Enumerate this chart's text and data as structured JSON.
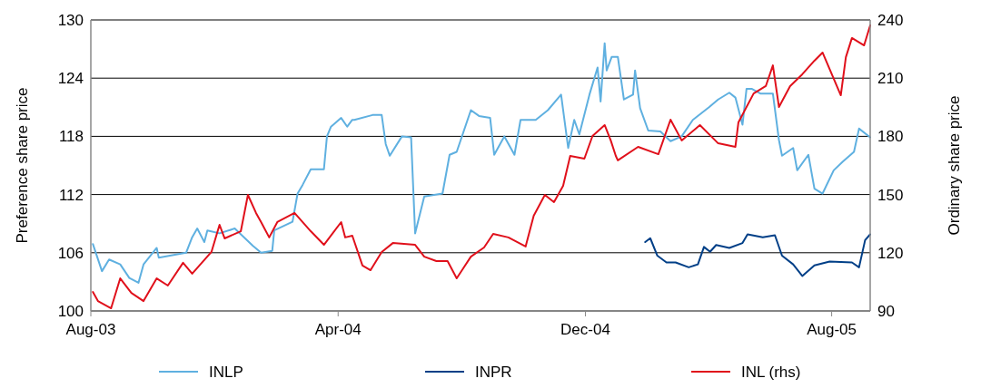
{
  "chart_data": {
    "type": "line",
    "ylabel": "Preference share price",
    "y2label": "Ordinary share price",
    "xlim": [
      "2003-08-01",
      "2005-09-08"
    ],
    "xticks": [
      {
        "value": "2003-08-01",
        "label": "Aug-03"
      },
      {
        "value": "2004-04-01",
        "label": "Apr-04"
      },
      {
        "value": "2004-12-01",
        "label": "Dec-04"
      },
      {
        "value": "2005-08-01",
        "label": "Aug-05"
      }
    ],
    "ylim": [
      100,
      130
    ],
    "yticks": [
      100,
      106,
      112,
      118,
      124,
      130
    ],
    "y2lim": [
      90,
      240
    ],
    "y2ticks": [
      90,
      120,
      150,
      180,
      210,
      240
    ],
    "grid": "y",
    "legend": "bottom",
    "line_style": "solid",
    "marker": "none",
    "series": [
      {
        "name": "INLP",
        "color": "#5fb0e0",
        "x": [
          "2003-08-03",
          "2003-08-12",
          "2003-08-19",
          "2003-08-30",
          "2003-09-08",
          "2003-09-17",
          "2003-09-22",
          "2003-10-05",
          "2003-10-07",
          "2003-11-03",
          "2003-11-09",
          "2003-11-14",
          "2003-11-21",
          "2003-11-24",
          "2003-12-06",
          "2003-12-21",
          "2004-01-08",
          "2004-01-16",
          "2004-01-27",
          "2004-01-29",
          "2004-02-16",
          "2004-02-21",
          "2004-02-26",
          "2004-03-05",
          "2004-03-18",
          "2004-03-21",
          "2004-03-25",
          "2004-04-04",
          "2004-04-10",
          "2004-04-15",
          "2004-04-17",
          "2004-05-05",
          "2004-05-14",
          "2004-05-18",
          "2004-05-22",
          "2004-06-03",
          "2004-06-12",
          "2004-06-16",
          "2004-06-25",
          "2004-07-13",
          "2004-07-20",
          "2004-07-27",
          "2004-08-10",
          "2004-08-18",
          "2004-08-29",
          "2004-09-02",
          "2004-09-12",
          "2004-09-22",
          "2004-09-28",
          "2004-10-13",
          "2004-10-25",
          "2004-11-07",
          "2004-11-14",
          "2004-11-20",
          "2004-11-25",
          "2004-12-05",
          "2004-12-13",
          "2004-12-16",
          "2004-12-20",
          "2004-12-22",
          "2004-12-27",
          "2005-01-02",
          "2005-01-08",
          "2005-01-17",
          "2005-01-19",
          "2005-01-24",
          "2005-02-01",
          "2005-02-13",
          "2005-02-23",
          "2005-03-06",
          "2005-03-17",
          "2005-04-02",
          "2005-04-11",
          "2005-04-22",
          "2005-04-28",
          "2005-05-05",
          "2005-05-09",
          "2005-05-14",
          "2005-05-23",
          "2005-06-04",
          "2005-06-10",
          "2005-06-13",
          "2005-06-24",
          "2005-06-28",
          "2005-07-09",
          "2005-07-15",
          "2005-07-23",
          "2005-08-03",
          "2005-08-12",
          "2005-08-23",
          "2005-08-28",
          "2005-09-08"
        ],
        "values": [
          106.9,
          104.1,
          105.3,
          104.8,
          103.4,
          102.9,
          104.8,
          106.5,
          105.5,
          106,
          107.6,
          108.5,
          107.1,
          108.3,
          108,
          108.5,
          106.7,
          106,
          106.2,
          108.3,
          109.2,
          112.1,
          113,
          114.6,
          114.6,
          118,
          119,
          119.9,
          119,
          119.7,
          119.7,
          120.2,
          120.2,
          117.2,
          116,
          118,
          117.9,
          108,
          111.8,
          112.1,
          116.1,
          116.4,
          120.7,
          120.1,
          119.9,
          116.1,
          118,
          116.1,
          119.7,
          119.7,
          120.7,
          122.3,
          116.8,
          119.7,
          118.2,
          122.3,
          125.1,
          121.6,
          127.6,
          124.8,
          126.2,
          126.2,
          121.8,
          122.3,
          124.8,
          120.9,
          118.6,
          118.5,
          117.5,
          118,
          119.7,
          121,
          121.8,
          122.5,
          122,
          119.2,
          122.9,
          122.9,
          122.4,
          122.4,
          117.6,
          116,
          116.8,
          114.5,
          116.1,
          112.6,
          112.1,
          114.5,
          115.4,
          116.4,
          118.8,
          117.9
        ]
      },
      {
        "name": "INPR",
        "color": "#003f87",
        "x": [
          "2005-01-29",
          "2005-02-03",
          "2005-02-10",
          "2005-02-19",
          "2005-02-28",
          "2005-03-13",
          "2005-03-22",
          "2005-03-28",
          "2005-04-03",
          "2005-04-09",
          "2005-04-22",
          "2005-05-05",
          "2005-05-10",
          "2005-05-25",
          "2005-06-06",
          "2005-06-13",
          "2005-06-24",
          "2005-07-03",
          "2005-07-15",
          "2005-07-30",
          "2005-08-21",
          "2005-08-28",
          "2005-09-03",
          "2005-09-08"
        ],
        "values": [
          107.1,
          107.5,
          105.7,
          105,
          105,
          104.5,
          104.8,
          106.6,
          106.1,
          106.8,
          106.5,
          107,
          107.9,
          107.6,
          107.8,
          105.7,
          104.8,
          103.6,
          104.7,
          105.1,
          105,
          104.5,
          107.3,
          107.9
        ]
      },
      {
        "name": "INL (rhs)",
        "color": "#e0101b",
        "axis": "y2",
        "x": [
          "2003-08-03",
          "2003-08-08",
          "2003-08-21",
          "2003-08-30",
          "2003-09-10",
          "2003-09-22",
          "2003-10-05",
          "2003-10-16",
          "2003-10-31",
          "2003-11-09",
          "2003-11-28",
          "2003-12-06",
          "2003-12-11",
          "2003-12-27",
          "2004-01-03",
          "2004-01-11",
          "2004-01-16",
          "2004-01-24",
          "2004-02-01",
          "2004-02-18",
          "2004-03-05",
          "2004-03-18",
          "2004-04-04",
          "2004-04-08",
          "2004-04-15",
          "2004-04-25",
          "2004-05-03",
          "2004-05-14",
          "2004-05-25",
          "2004-06-16",
          "2004-06-25",
          "2004-07-07",
          "2004-07-18",
          "2004-07-27",
          "2004-08-10",
          "2004-08-23",
          "2004-09-01",
          "2004-09-16",
          "2004-10-03",
          "2004-10-11",
          "2004-10-22",
          "2004-10-31",
          "2004-11-09",
          "2004-11-16",
          "2004-11-30",
          "2004-12-08",
          "2004-12-20",
          "2004-12-26",
          "2004-12-31",
          "2005-01-02",
          "2005-01-22",
          "2005-02-11",
          "2005-02-23",
          "2005-03-06",
          "2005-03-24",
          "2005-04-11",
          "2005-04-28",
          "2005-05-01",
          "2005-05-16",
          "2005-05-28",
          "2005-06-04",
          "2005-06-10",
          "2005-06-21",
          "2005-07-03",
          "2005-07-15",
          "2005-07-23",
          "2005-08-10",
          "2005-08-15",
          "2005-08-21",
          "2005-09-02",
          "2005-09-08"
        ],
        "values": [
          99.8,
          95.1,
          91.4,
          106.8,
          99.3,
          95.1,
          106.8,
          103.1,
          114.8,
          109.2,
          120.4,
          134.4,
          127.4,
          131.1,
          149.8,
          140.5,
          135.8,
          127.9,
          135.8,
          140.5,
          131.1,
          124.1,
          135.8,
          127.9,
          128.8,
          113.4,
          111,
          120.4,
          125,
          124.1,
          118,
          115.7,
          115.7,
          106.8,
          118,
          122.7,
          129.7,
          127.9,
          123.2,
          139.1,
          149.8,
          146.1,
          154.5,
          169.9,
          168.5,
          180.2,
          185.8,
          177.9,
          169.9,
          167.6,
          174.6,
          170.8,
          188.6,
          177.9,
          185.8,
          176.4,
          174.6,
          187.2,
          202.1,
          205.9,
          216.6,
          195.1,
          205.9,
          212,
          219,
          223.2,
          201.2,
          220.8,
          230.7,
          226.9,
          237.2
        ]
      }
    ]
  }
}
